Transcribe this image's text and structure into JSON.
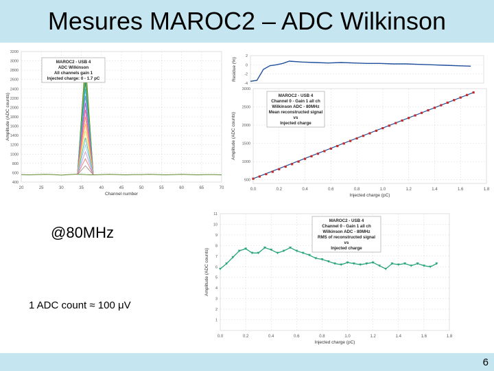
{
  "slide": {
    "title": "Mesures MAROC2 – ADC Wilkinson",
    "rate_label": "@80MHz",
    "adc_note": "1 ADC count ≈ 100 μV",
    "page_number": "6"
  },
  "chart_data": [
    {
      "id": "spectrum",
      "type": "line",
      "title": "",
      "legend": [
        "MAROC2 - USB 4",
        "ADC Wilkinson",
        "All channels gain 1",
        "Injected charge: 0 - 1.7 pC"
      ],
      "legend_position": "top-left",
      "xlabel": "Channel number",
      "ylabel": "Amplitude (ADC counts)",
      "xlim": [
        20,
        70
      ],
      "ylim": [
        400,
        3200
      ],
      "xticks": [
        "20",
        "25",
        "30",
        "35",
        "40",
        "45",
        "50",
        "55",
        "60",
        "65",
        "70"
      ],
      "yticks": [
        "400",
        "600",
        "800",
        "1000",
        "1200",
        "1400",
        "1600",
        "1800",
        "2000",
        "2200",
        "2400",
        "2600",
        "2800",
        "3000",
        "3200"
      ],
      "ytick_labels": [
        "400",
        "600",
        "800",
        "1000",
        "1200",
        "1400",
        "1600",
        "1800",
        "2000",
        "2200",
        "2400",
        "2600",
        "2800",
        "3000",
        "3200"
      ],
      "x": [
        20,
        22,
        24,
        26,
        28,
        30,
        32,
        34,
        36,
        38,
        40,
        42,
        44,
        46,
        48,
        50,
        52,
        54,
        56,
        58,
        60,
        62,
        64,
        66,
        68,
        70
      ],
      "baseline": [
        560,
        555,
        560,
        565,
        560,
        550,
        560,
        570,
        560,
        555,
        560,
        565,
        560,
        555,
        560,
        560,
        565,
        560,
        555,
        560,
        565,
        560,
        555,
        560,
        560,
        555
      ],
      "peak_x": 36,
      "peak_heights": [
        3000,
        2850,
        2700,
        2550,
        2400,
        2250,
        2100,
        1950,
        1800,
        1650,
        1500,
        1350,
        1200,
        1050,
        900,
        750
      ],
      "series_colors": [
        "#2e7d32",
        "#9e9d24",
        "#8bc34a",
        "#00897b",
        "#4fc3f7",
        "#7986cb",
        "#ba68c8",
        "#f06292",
        "#ff8a65",
        "#ffb74d",
        "#dce775",
        "#4db6ac",
        "#90caf9",
        "#ce93d8",
        "#e57373",
        "#a1887f"
      ]
    },
    {
      "id": "residuals",
      "type": "line",
      "ylabel": "Residue (%)",
      "xlim": [
        0,
        1.8
      ],
      "ylim": [
        -4,
        2
      ],
      "yticks": [
        "-4",
        "-2",
        "0",
        "2"
      ],
      "x": [
        0.0,
        0.05,
        0.1,
        0.15,
        0.2,
        0.25,
        0.3,
        0.4,
        0.5,
        0.6,
        0.7,
        0.8,
        0.9,
        1.0,
        1.1,
        1.2,
        1.3,
        1.4,
        1.5,
        1.6,
        1.7
      ],
      "values": [
        -3.6,
        -3.4,
        -1.0,
        -0.2,
        0.0,
        0.3,
        0.8,
        0.6,
        0.5,
        0.4,
        0.5,
        0.4,
        0.3,
        0.3,
        0.2,
        0.2,
        0.1,
        0.0,
        -0.1,
        -0.2,
        -0.3
      ],
      "color": "#1f4e9c"
    },
    {
      "id": "linearity",
      "type": "scatter",
      "legend": [
        "MAROC2 - USB 4",
        "Channel 0 - Gain 1 all ch",
        "Wilkinson ADC - 80MHz",
        "Mean reconstructed signal",
        "vs",
        "Injected charge"
      ],
      "legend_position": "top-left",
      "xlabel": "Injected charge (pC)",
      "ylabel": "Amplitude (ADC counts)",
      "xlim": [
        0,
        1.8
      ],
      "ylim": [
        400,
        3000
      ],
      "xticks": [
        "0.0",
        "0.2",
        "0.4",
        "0.6",
        "0.8",
        "1.0",
        "1.2",
        "1.4",
        "1.6",
        "1.8"
      ],
      "yticks": [
        "500",
        "1000",
        "1500",
        "2000",
        "2500",
        "3000"
      ],
      "x": [
        0.0,
        0.05,
        0.1,
        0.15,
        0.2,
        0.25,
        0.3,
        0.35,
        0.4,
        0.45,
        0.5,
        0.55,
        0.6,
        0.65,
        0.7,
        0.75,
        0.8,
        0.85,
        0.9,
        0.95,
        1.0,
        1.05,
        1.1,
        1.15,
        1.2,
        1.25,
        1.3,
        1.35,
        1.4,
        1.45,
        1.5,
        1.55,
        1.6,
        1.65,
        1.7
      ],
      "values": [
        530,
        590,
        655,
        720,
        790,
        860,
        930,
        1000,
        1075,
        1145,
        1215,
        1285,
        1355,
        1425,
        1495,
        1565,
        1635,
        1705,
        1775,
        1845,
        1915,
        1985,
        2055,
        2125,
        2195,
        2265,
        2335,
        2405,
        2475,
        2545,
        2615,
        2685,
        2755,
        2825,
        2895
      ],
      "fit_color": "#1f4e9c",
      "marker_color": "#c62828"
    },
    {
      "id": "rms",
      "type": "line",
      "legend": [
        "MAROC2 - USB 4",
        "Channel 0 - Gain 1 all ch",
        "Wilkinson ADC - 80MHz",
        "RMS of reconstructed signal",
        "vs",
        "Injected charge"
      ],
      "legend_position": "top-right",
      "xlabel": "Injected charge (pC)",
      "ylabel": "Amplitude (ADC counts)",
      "xlim": [
        0,
        1.8
      ],
      "ylim": [
        0,
        11
      ],
      "xticks": [
        "0.0",
        "0.2",
        "0.4",
        "0.6",
        "0.8",
        "1.0",
        "1.2",
        "1.4",
        "1.6",
        "1.8"
      ],
      "yticks": [
        "1",
        "2",
        "3",
        "4",
        "5",
        "6",
        "7",
        "8",
        "9",
        "10",
        "11"
      ],
      "x": [
        0.0,
        0.05,
        0.1,
        0.15,
        0.2,
        0.25,
        0.3,
        0.35,
        0.4,
        0.45,
        0.5,
        0.55,
        0.6,
        0.65,
        0.7,
        0.75,
        0.8,
        0.85,
        0.9,
        0.95,
        1.0,
        1.05,
        1.1,
        1.15,
        1.2,
        1.25,
        1.3,
        1.35,
        1.4,
        1.45,
        1.5,
        1.55,
        1.6,
        1.65,
        1.7
      ],
      "values": [
        5.8,
        6.3,
        6.9,
        7.5,
        7.7,
        7.3,
        7.3,
        7.8,
        7.6,
        7.3,
        7.5,
        7.8,
        7.5,
        7.3,
        7.1,
        6.8,
        6.7,
        6.5,
        6.3,
        6.2,
        6.4,
        6.3,
        6.2,
        6.3,
        6.4,
        6.1,
        5.8,
        6.3,
        6.2,
        6.3,
        6.1,
        6.3,
        6.1,
        6.0,
        6.3
      ],
      "color": "#26a37a"
    }
  ]
}
